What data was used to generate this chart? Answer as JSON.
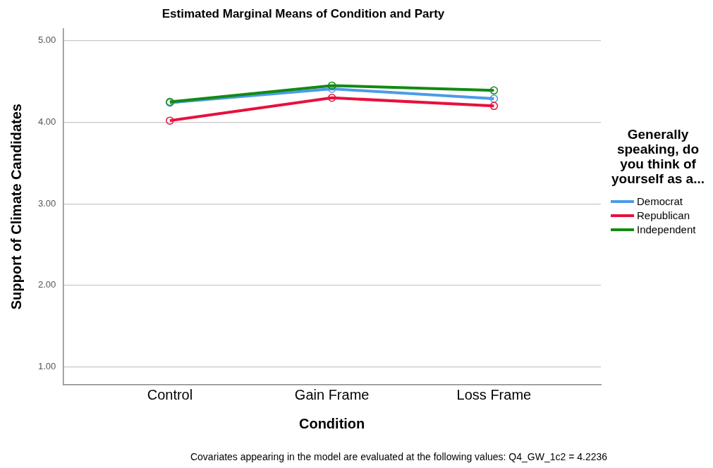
{
  "chart_data": {
    "type": "line",
    "title": "Estimated Marginal Means of Condition and Party",
    "xlabel": "Condition",
    "ylabel": "Support of Climate Candidates",
    "legend_title": "Generally speaking, do you think of yourself as a...",
    "categories": [
      "Control",
      "Gain Frame",
      "Loss Frame"
    ],
    "series": [
      {
        "name": "Democrat",
        "color": "#4c9be8",
        "values": [
          4.24,
          4.41,
          4.29
        ]
      },
      {
        "name": "Republican",
        "color": "#e8103c",
        "values": [
          4.02,
          4.3,
          4.2
        ]
      },
      {
        "name": "Independent",
        "color": "#138a13",
        "values": [
          4.25,
          4.45,
          4.39
        ]
      }
    ],
    "ylim": [
      0.78,
      5.15
    ],
    "yticks": [
      {
        "value": 1,
        "label": "1.00"
      },
      {
        "value": 2,
        "label": "2.00"
      },
      {
        "value": 3,
        "label": "3.00"
      },
      {
        "value": 4,
        "label": "4.00"
      },
      {
        "value": 5,
        "label": "5.00"
      }
    ],
    "grid": "y",
    "legend": "right",
    "marker": "circle",
    "line_style": "solid",
    "annotations": [
      "Covariates appearing in the model are evaluated at the following values: Q4_GW_1c2 = 4.2236"
    ]
  }
}
